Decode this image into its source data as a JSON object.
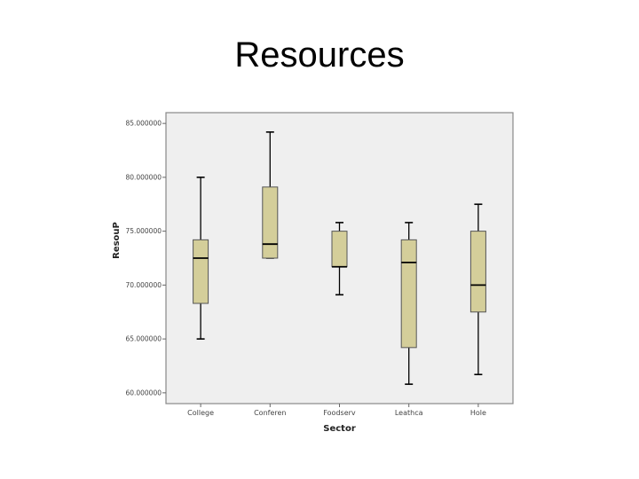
{
  "slide": {
    "title": "Resources"
  },
  "chart_data": {
    "type": "boxplot",
    "title": "",
    "xlabel": "Sector",
    "ylabel": "ResouP",
    "ylim": [
      59,
      86
    ],
    "y_ticks": [
      60,
      65,
      70,
      75,
      80,
      85
    ],
    "y_tick_labels": [
      "60.000000",
      "65.000000",
      "70.000000",
      "75.000000",
      "80.000000",
      "85.000000"
    ],
    "categories": [
      "College",
      "Conferen",
      "Foodserv",
      "Leathca",
      "Hole"
    ],
    "boxes": [
      {
        "min": 65.0,
        "q1": 68.3,
        "median": 72.5,
        "q3": 74.2,
        "max": 80.0
      },
      {
        "min": 72.5,
        "q1": 72.5,
        "median": 73.8,
        "q3": 79.1,
        "max": 84.2
      },
      {
        "min": 69.1,
        "q1": 71.7,
        "median": 71.7,
        "q3": 75.0,
        "max": 75.8
      },
      {
        "min": 60.8,
        "q1": 64.2,
        "median": 72.1,
        "q3": 74.2,
        "max": 75.8
      },
      {
        "min": 61.7,
        "q1": 67.5,
        "median": 70.0,
        "q3": 75.0,
        "max": 77.5
      }
    ],
    "grid": false,
    "colors": {
      "box_fill": "#d4ce9a",
      "plot_bg": "#efefef",
      "frame": "#888888"
    }
  }
}
